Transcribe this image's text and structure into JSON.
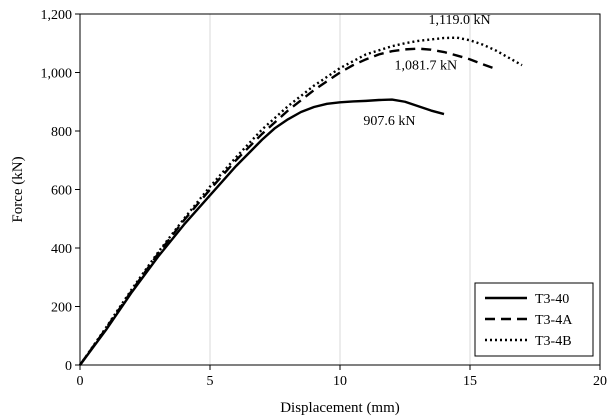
{
  "chart_data": {
    "type": "line",
    "xlabel": "Displacement (mm)",
    "ylabel": "Force (kN)",
    "xlim": [
      0,
      20
    ],
    "ylim": [
      0,
      1200
    ],
    "x_ticks": [
      0,
      5,
      10,
      15,
      20
    ],
    "y_ticks": [
      0,
      200,
      400,
      600,
      800,
      1000,
      1200
    ],
    "x_tick_labels": [
      "0",
      "5",
      "10",
      "15",
      "20"
    ],
    "y_tick_labels": [
      "0",
      "200",
      "400",
      "600",
      "800",
      "1,000",
      "1,200"
    ],
    "grid": "vertical",
    "legend_position": "bottom-right",
    "series": [
      {
        "name": "T3-40",
        "dash": "solid",
        "x": [
          0,
          1,
          2,
          3,
          4,
          5,
          6,
          7,
          7.5,
          8,
          8.5,
          9,
          9.5,
          10,
          10.5,
          11,
          11.5,
          12,
          12.5,
          13,
          13.5,
          14
        ],
        "y": [
          0,
          120,
          250,
          370,
          480,
          580,
          680,
          770,
          810,
          840,
          865,
          882,
          893,
          898,
          901,
          903,
          906,
          907.6,
          900,
          885,
          870,
          858
        ]
      },
      {
        "name": "T3-4A",
        "dash": "dashed",
        "x": [
          0,
          1,
          2,
          3,
          4,
          5,
          6,
          7,
          8,
          9,
          10,
          10.5,
          11,
          11.5,
          12,
          12.5,
          13,
          13.5,
          14,
          14.5,
          15,
          15.5,
          16
        ],
        "y": [
          0,
          125,
          255,
          380,
          495,
          600,
          700,
          790,
          870,
          940,
          1000,
          1025,
          1045,
          1062,
          1073,
          1079,
          1081.7,
          1078,
          1070,
          1058,
          1045,
          1028,
          1012
        ]
      },
      {
        "name": "T3-4B",
        "dash": "dotted",
        "x": [
          0,
          1,
          2,
          3,
          4,
          5,
          6,
          7,
          8,
          9,
          10,
          11,
          12,
          12.5,
          13,
          13.5,
          14,
          14.5,
          15,
          15.5,
          16,
          16.5,
          17
        ],
        "y": [
          0,
          128,
          260,
          385,
          500,
          610,
          710,
          805,
          885,
          955,
          1015,
          1062,
          1090,
          1100,
          1108,
          1113,
          1118,
          1119.0,
          1110,
          1095,
          1075,
          1050,
          1025
        ]
      }
    ],
    "annotations": [
      {
        "text": "1,119.0 kN",
        "x": 14.6,
        "y": 1165
      },
      {
        "text": "1,081.7 kN",
        "x": 13.3,
        "y": 1010
      },
      {
        "text": "907.6 kN",
        "x": 11.9,
        "y": 820
      }
    ]
  }
}
